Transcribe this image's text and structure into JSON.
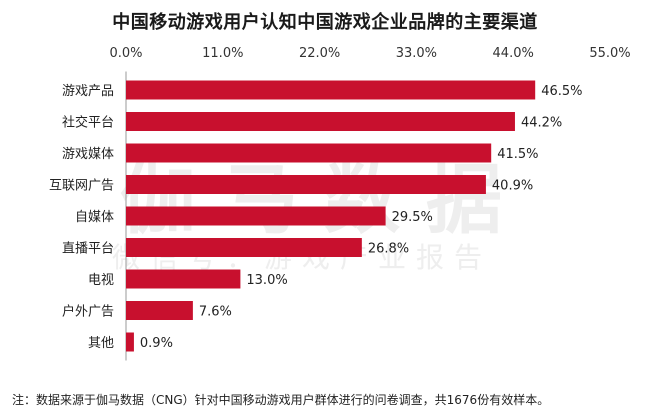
{
  "watermark": {
    "main": "伽马数据",
    "sub": "微信号：游戏产业报告"
  },
  "note": "注：数据来源于伽马数据（CNG）针对中国移动游戏用户群体进行的问卷调查，共1676份有效样本。",
  "chart_data": {
    "type": "bar",
    "orientation": "horizontal",
    "title": "中国移动游戏用户认知中国游戏企业品牌的主要渠道",
    "xlabel": "",
    "ylabel": "",
    "x_axis_position": "top",
    "xlim": [
      0,
      55
    ],
    "ticks": [
      "0.0%",
      "11.0%",
      "22.0%",
      "33.0%",
      "44.0%",
      "55.0%"
    ],
    "categories": [
      "游戏产品",
      "社交平台",
      "游戏媒体",
      "互联网广告",
      "自媒体",
      "直播平台",
      "电视",
      "户外广告",
      "其他"
    ],
    "values": [
      46.5,
      44.2,
      41.5,
      40.9,
      29.5,
      26.8,
      13.0,
      7.6,
      0.9
    ],
    "value_labels": [
      "46.5%",
      "44.2%",
      "41.5%",
      "40.9%",
      "29.5%",
      "26.8%",
      "13.0%",
      "7.6%",
      "0.9%"
    ],
    "grid": false,
    "legend": "none",
    "bar_color": "#c8102e"
  }
}
